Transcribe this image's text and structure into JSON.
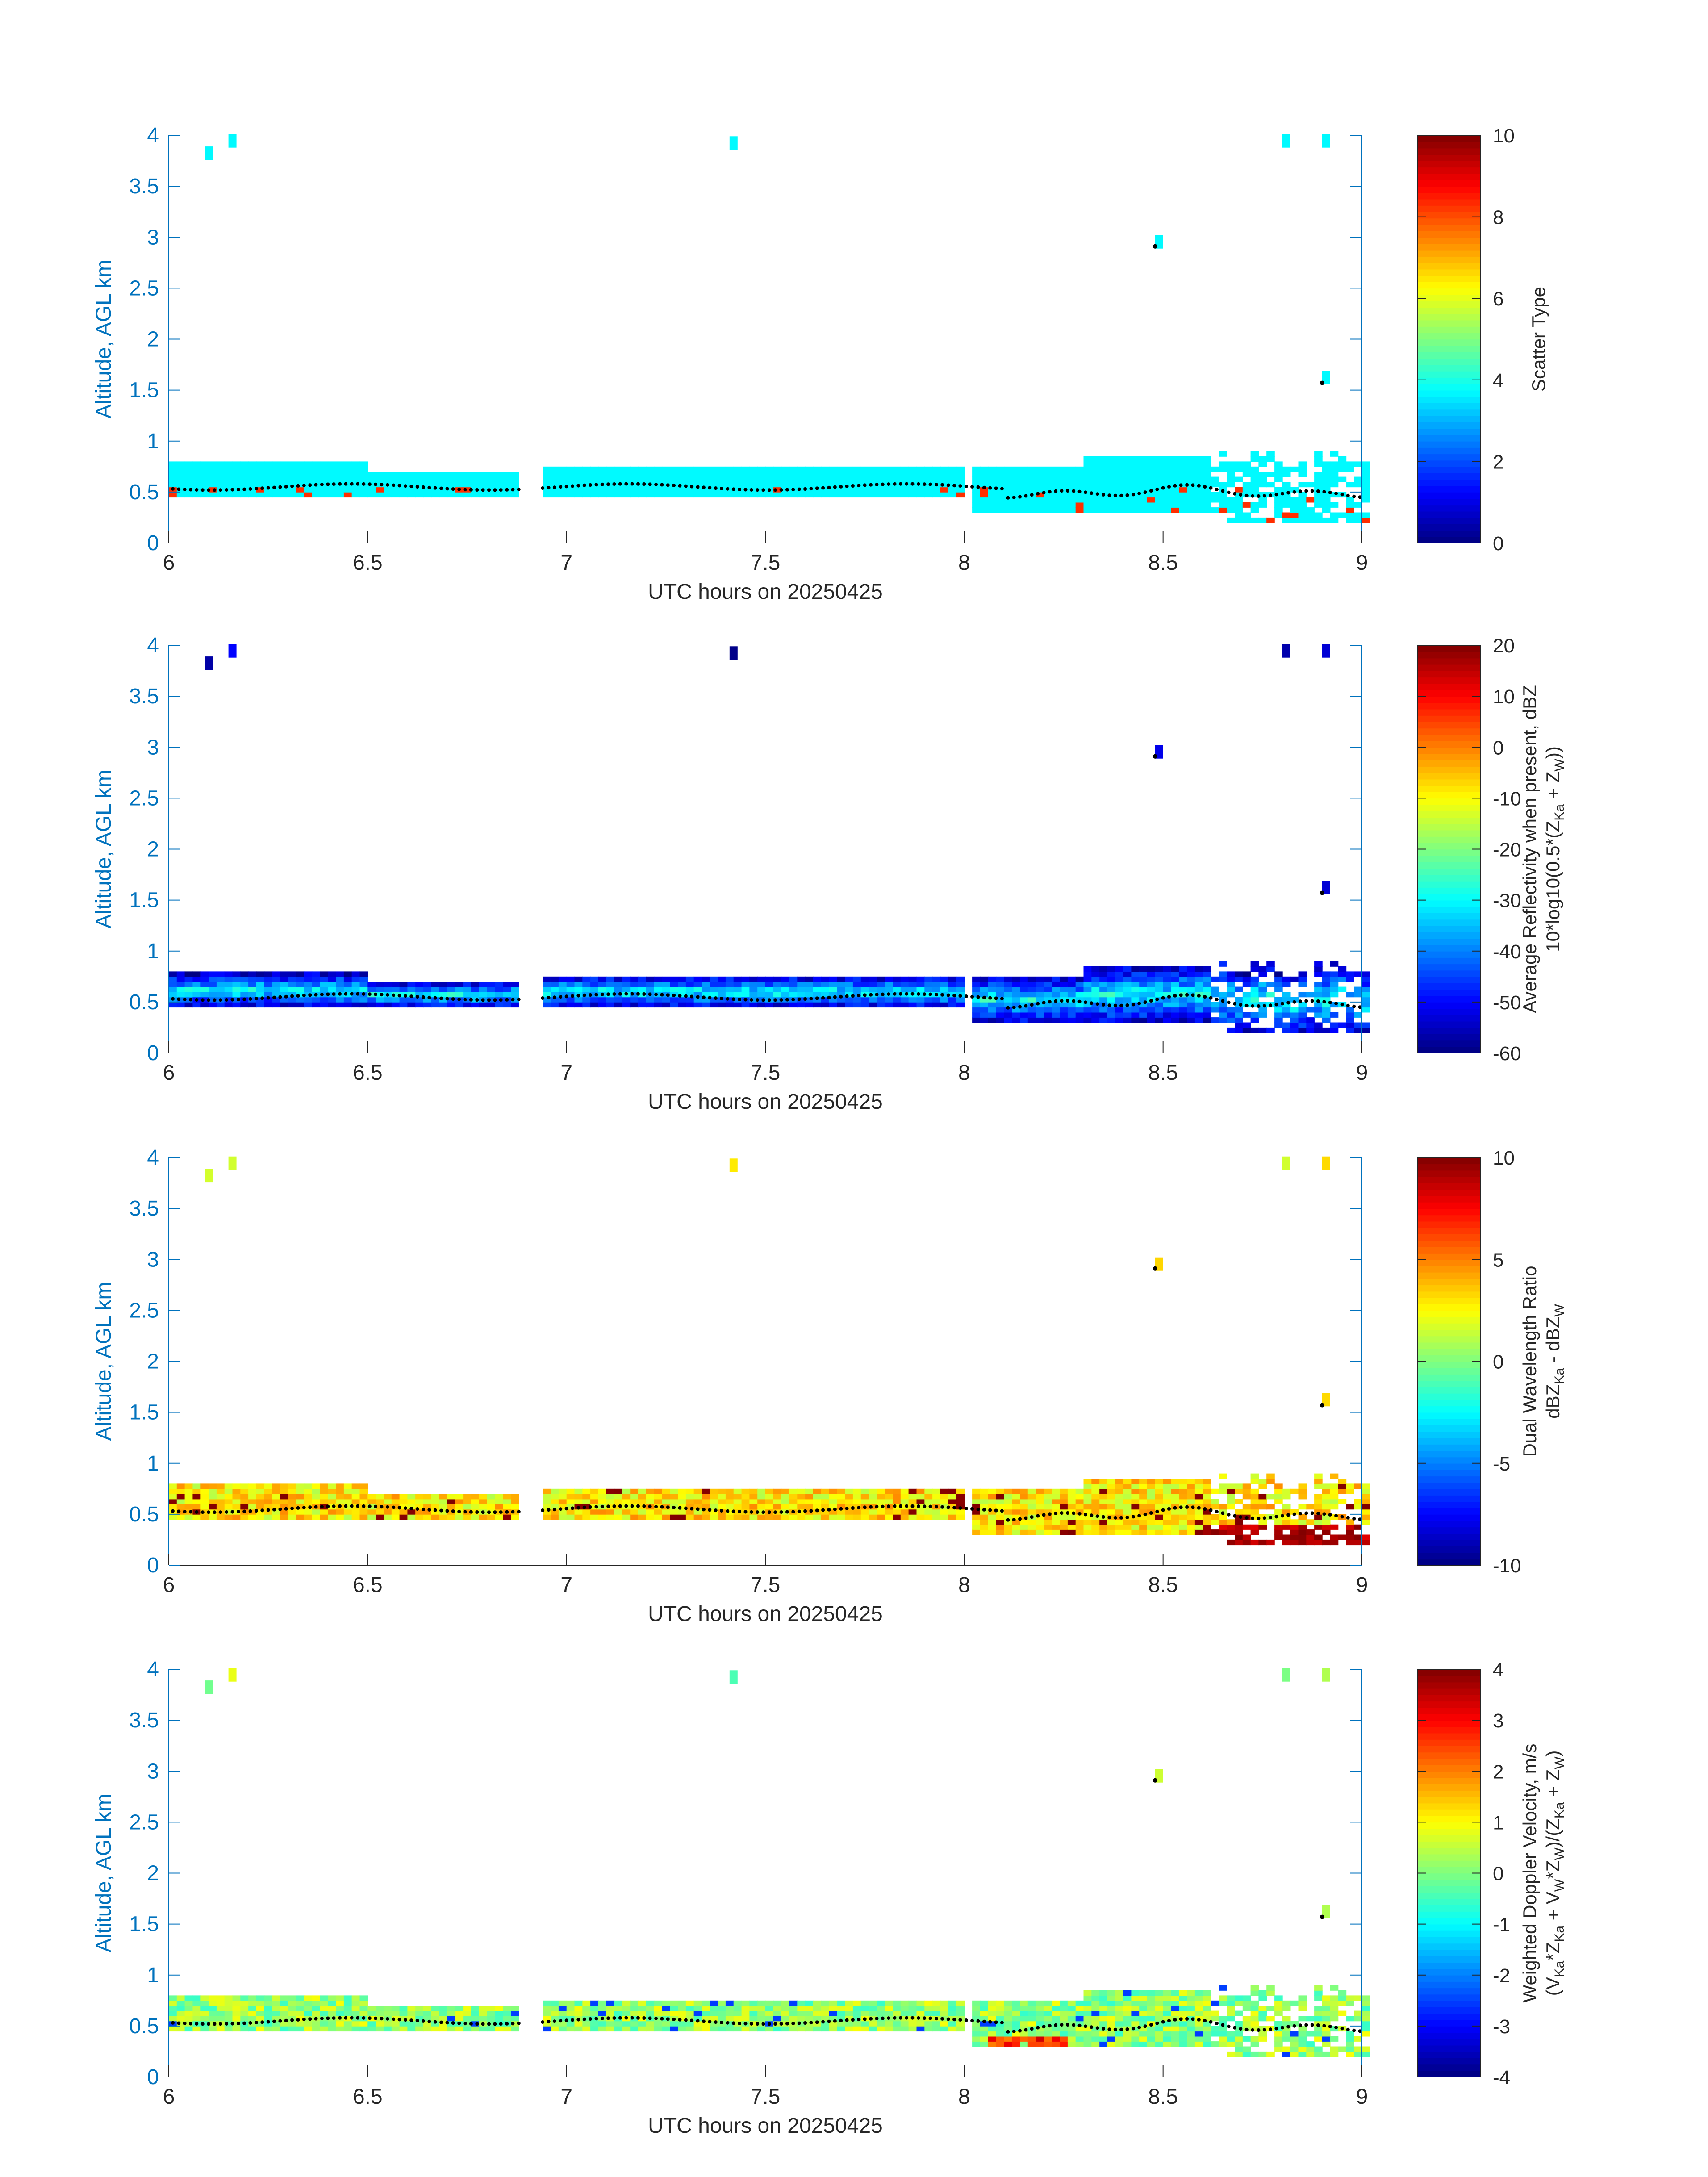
{
  "figure": {
    "x_axis_label": "UTC hours on 20250425",
    "y_axis_label": "Altitude, AGL km",
    "x_ticks": [
      "6",
      "6.5",
      "7",
      "7.5",
      "8",
      "8.5",
      "9"
    ],
    "y_ticks": [
      "0",
      "0.5",
      "1",
      "1.5",
      "2",
      "2.5",
      "3",
      "3.5",
      "4"
    ],
    "axis_color": "#0072BD",
    "colormap": "jet"
  },
  "chart_data": [
    {
      "type": "heatmap",
      "xlabel": "UTC hours on 20250425",
      "ylabel": "Altitude, AGL km",
      "xlim": [
        6,
        9
      ],
      "ylim": [
        0,
        4
      ],
      "colorbar": {
        "label_lines": [
          "Scatter Type"
        ],
        "ticks": [
          "0",
          "2",
          "4",
          "6",
          "8",
          "10"
        ],
        "range": [
          0,
          10
        ]
      },
      "field": "scatter_type",
      "dominant_value": 3.7,
      "secondary_value": 8.3
    },
    {
      "type": "heatmap",
      "xlabel": "UTC hours on 20250425",
      "ylabel": "Altitude, AGL km",
      "xlim": [
        6,
        9
      ],
      "ylim": [
        0,
        4
      ],
      "colorbar": {
        "label_lines": [
          "Average Reflectivity when present, dBZ",
          "10*log10(0.5*(Z",
          "Ka",
          " + Z",
          "W",
          "))"
        ],
        "ticks": [
          "-60",
          "-50",
          "-40",
          "-30",
          "-20",
          "-10",
          "0",
          "10",
          "20"
        ],
        "range": [
          -60,
          20
        ]
      },
      "field": "reflectivity_dbz"
    },
    {
      "type": "heatmap",
      "xlabel": "UTC hours on 20250425",
      "ylabel": "Altitude, AGL km",
      "xlim": [
        6,
        9
      ],
      "ylim": [
        0,
        4
      ],
      "colorbar": {
        "label_lines": [
          "Dual Wavelength Ratio",
          "dBZ",
          "Ka",
          " - dBZ",
          "W"
        ],
        "ticks": [
          "-10",
          "-5",
          "0",
          "5",
          "10"
        ],
        "range": [
          -10,
          10
        ]
      },
      "field": "dwr"
    },
    {
      "type": "heatmap",
      "xlabel": "UTC hours on 20250425",
      "ylabel": "Altitude, AGL km",
      "xlim": [
        6,
        9
      ],
      "ylim": [
        0,
        4
      ],
      "colorbar": {
        "label_lines": [
          "Weighted Doppler Velocity, m/s",
          "(V",
          "Ka",
          "*Z",
          "Ka",
          " + V",
          "W",
          "*Z",
          "W",
          ")/(Z",
          "Ka",
          " + Z",
          "W",
          ")"
        ],
        "ticks": [
          "-4",
          "-3",
          "-2",
          "-1",
          "0",
          "1",
          "2",
          "3",
          "4"
        ],
        "range": [
          -4,
          4
        ]
      },
      "field": "doppler_velocity"
    }
  ]
}
